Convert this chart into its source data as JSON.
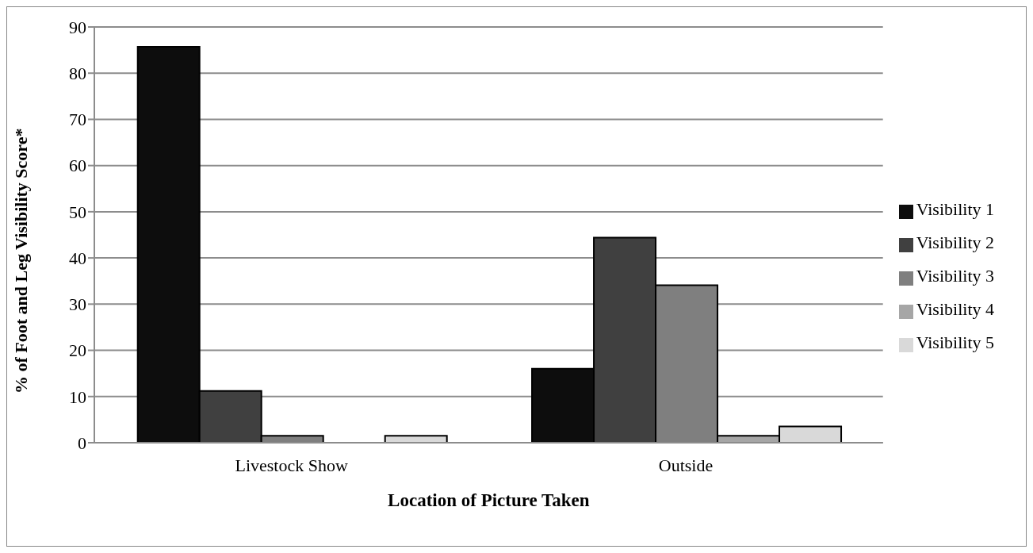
{
  "chart_data": {
    "type": "bar",
    "xlabel": "Location of Picture Taken",
    "ylabel": "% of Foot and Leg Visibility Score*",
    "categories": [
      "Livestock Show",
      "Outside"
    ],
    "series": [
      {
        "name": "Visibility 1",
        "color": "#0d0d0d",
        "values": [
          85.7,
          16.0
        ]
      },
      {
        "name": "Visibility 2",
        "color": "#404040",
        "values": [
          11.2,
          44.4
        ]
      },
      {
        "name": "Visibility 3",
        "color": "#7f7f7f",
        "values": [
          1.5,
          34.1
        ]
      },
      {
        "name": "Visibility 4",
        "color": "#a6a6a6",
        "values": [
          0,
          1.5
        ]
      },
      {
        "name": "Visibility 5",
        "color": "#d9d9d9",
        "values": [
          1.5,
          3.5
        ]
      }
    ],
    "ylim": [
      0,
      90
    ],
    "yticks": [
      0,
      10,
      20,
      30,
      40,
      50,
      60,
      70,
      80,
      90
    ],
    "grid": "y",
    "legend": "right"
  }
}
